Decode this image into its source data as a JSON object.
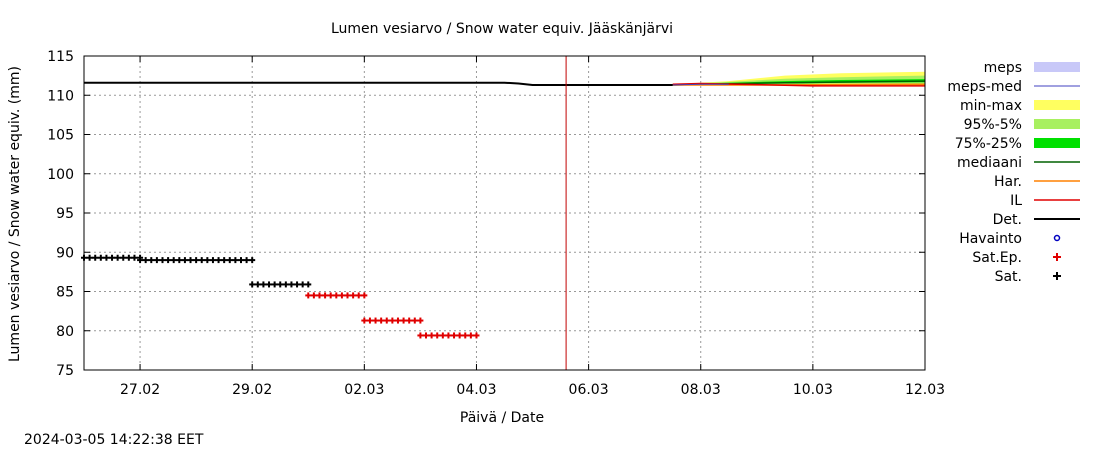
{
  "chart_data": {
    "type": "line",
    "title": "Lumen vesiarvo / Snow water equiv.  Jääskänjärvi",
    "xlabel": "Päivä / Date",
    "ylabel": "Lumen vesiarvo / Snow water equiv. (mm)",
    "ylim": [
      75,
      115
    ],
    "xlim": [
      "2024-02-26",
      "2024-03-12"
    ],
    "yticks": [
      75,
      80,
      85,
      90,
      95,
      100,
      105,
      110,
      115
    ],
    "xticks": [
      "27.02",
      "29.02",
      "02.03",
      "04.03",
      "06.03",
      "08.03",
      "10.03",
      "12.03"
    ],
    "grid": true,
    "legend_position": "right",
    "now_line": "2024-03-05 14:22",
    "colors": {
      "meps": "#c8c8f8",
      "meps_med": "#4040c0",
      "min_max": "#ffff60",
      "p95_5": "#a8f060",
      "p75_25": "#00e000",
      "mediaani": "#006000",
      "har": "#ff8000",
      "il": "#e00000",
      "det": "#000000",
      "havainto": "#0000c0",
      "sat_ep": "#e00000",
      "sat": "#000000",
      "now_line": "#c00000"
    },
    "legend": [
      {
        "key": "meps",
        "label": "meps",
        "style": "box"
      },
      {
        "key": "meps_med",
        "label": "meps-med",
        "style": "thin-line"
      },
      {
        "key": "min_max",
        "label": "min-max",
        "style": "box"
      },
      {
        "key": "p95_5",
        "label": "95%-5%",
        "style": "box"
      },
      {
        "key": "p75_25",
        "label": "75%-25%",
        "style": "box"
      },
      {
        "key": "mediaani",
        "label": "mediaani",
        "style": "line"
      },
      {
        "key": "har",
        "label": "Har.",
        "style": "line"
      },
      {
        "key": "il",
        "label": "IL",
        "style": "line"
      },
      {
        "key": "det",
        "label": "Det.",
        "style": "thick-line"
      },
      {
        "key": "havainto",
        "label": "Havainto",
        "style": "circle"
      },
      {
        "key": "sat_ep",
        "label": "Sat.Ep.",
        "style": "plus"
      },
      {
        "key": "sat",
        "label": "Sat.",
        "style": "plus"
      }
    ],
    "series": {
      "det": [
        [
          "2024-02-26 00:00",
          111.6
        ],
        [
          "2024-03-04 12:00",
          111.6
        ],
        [
          "2024-03-04 18:00",
          111.5
        ],
        [
          "2024-03-05 00:00",
          111.3
        ],
        [
          "2024-03-07 12:00",
          111.3
        ]
      ],
      "sat_groups": [
        {
          "from": "2024-02-26 00:00",
          "to": "2024-02-27 00:00",
          "value": 89.3
        },
        {
          "from": "2024-02-27 00:00",
          "to": "2024-02-29 00:00",
          "value": 89.0
        },
        {
          "from": "2024-02-29 00:00",
          "to": "2024-03-01 00:00",
          "value": 85.9
        }
      ],
      "sat_ep_groups": [
        {
          "from": "2024-03-01 00:00",
          "to": "2024-03-02 00:00",
          "value": 84.5
        },
        {
          "from": "2024-03-02 00:00",
          "to": "2024-03-03 00:00",
          "value": 81.3
        },
        {
          "from": "2024-03-03 00:00",
          "to": "2024-03-04 00:00",
          "value": 79.4
        }
      ],
      "min_max": [
        [
          "2024-03-07 12:00",
          111.3,
          111.4
        ],
        [
          "2024-03-08 12:00",
          111.3,
          111.8
        ],
        [
          "2024-03-09 12:00",
          111.2,
          112.5
        ],
        [
          "2024-03-10 12:00",
          111.2,
          112.8
        ],
        [
          "2024-03-12 00:00",
          111.2,
          113.0
        ]
      ],
      "p95_5": [
        [
          "2024-03-07 12:00",
          111.3,
          111.4
        ],
        [
          "2024-03-08 12:00",
          111.4,
          111.7
        ],
        [
          "2024-03-09 12:00",
          111.4,
          112.1
        ],
        [
          "2024-03-10 12:00",
          111.5,
          112.3
        ],
        [
          "2024-03-12 00:00",
          111.5,
          112.5
        ]
      ],
      "p75_25": [
        [
          "2024-03-07 12:00",
          111.3,
          111.35
        ],
        [
          "2024-03-08 12:00",
          111.45,
          111.6
        ],
        [
          "2024-03-09 12:00",
          111.5,
          111.8
        ],
        [
          "2024-03-10 12:00",
          111.6,
          111.95
        ],
        [
          "2024-03-12 00:00",
          111.65,
          112.05
        ]
      ],
      "mediaani": [
        [
          "2024-03-07 12:00",
          111.3
        ],
        [
          "2024-03-09 12:00",
          111.6
        ],
        [
          "2024-03-12 00:00",
          111.8
        ]
      ],
      "meps_med": [
        [
          "2024-03-07 12:00",
          111.3
        ],
        [
          "2024-03-08 00:00",
          111.4
        ],
        [
          "2024-03-08 12:00",
          111.4
        ]
      ],
      "har": [
        [
          "2024-03-07 12:00",
          111.3
        ],
        [
          "2024-03-09 00:00",
          111.3
        ],
        [
          "2024-03-12 00:00",
          111.4
        ]
      ],
      "il": [
        [
          "2024-03-07 12:00",
          111.4
        ],
        [
          "2024-03-08 00:00",
          111.5
        ],
        [
          "2024-03-10 00:00",
          111.2
        ],
        [
          "2024-03-12 00:00",
          111.2
        ]
      ]
    }
  },
  "footer": {
    "timestamp": "2024-03-05 14:22:38 EET"
  }
}
